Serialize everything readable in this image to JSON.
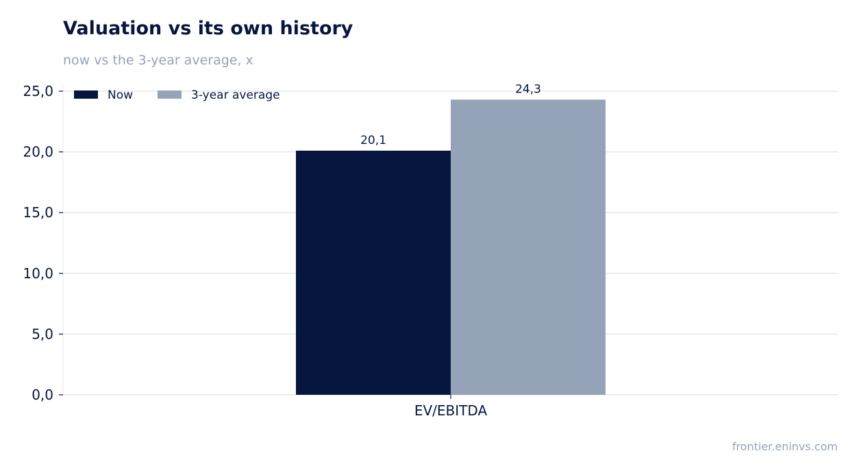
{
  "title": "Valuation vs its own history",
  "subtitle": "now vs the 3-year average, x",
  "source": "frontier.eninvs.com",
  "chart_data": {
    "type": "bar",
    "categories": [
      "EV/EBITDA"
    ],
    "series": [
      {
        "name": "Now",
        "values": [
          20.1
        ],
        "labels": [
          "20,1"
        ],
        "color": "#06163f"
      },
      {
        "name": "3-year average",
        "values": [
          24.3
        ],
        "labels": [
          "24,3"
        ],
        "color": "#94a3b8"
      }
    ],
    "ylim": [
      0,
      25
    ],
    "yticks": [
      0,
      5,
      10,
      15,
      20,
      25
    ],
    "ytick_labels": [
      "0,0",
      "5,0",
      "10,0",
      "15,0",
      "20,0",
      "25,0"
    ],
    "grid": true,
    "legend": "top-left"
  }
}
